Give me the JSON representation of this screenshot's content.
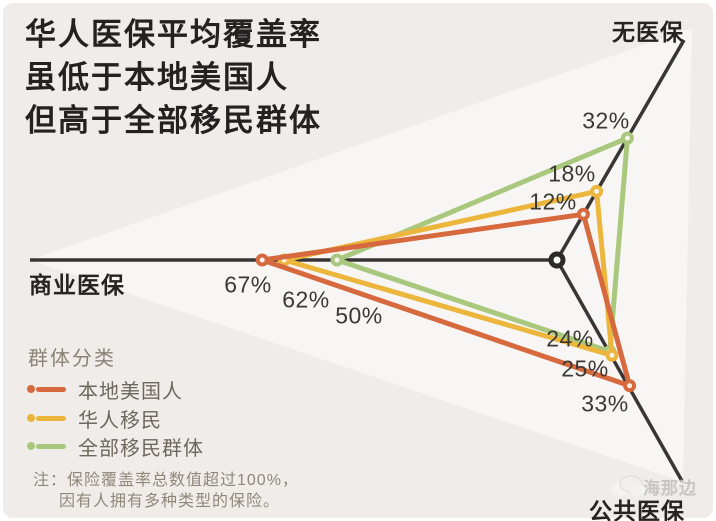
{
  "title": {
    "lines": [
      "华人医保平均覆盖率",
      "虽低于本地美国人",
      "但高于全部移民群体"
    ]
  },
  "chart_data": {
    "type": "radar",
    "unit": "%",
    "axes": [
      {
        "label": "无医保"
      },
      {
        "label": "商业医保"
      },
      {
        "label": "公共医保"
      }
    ],
    "series": [
      {
        "name": "本地美国人",
        "color": "#d7693f",
        "points": [
          {
            "axis": "商业医保",
            "value": 67,
            "display": "67%"
          },
          {
            "axis": "无医保",
            "value": 12,
            "display": "12%"
          },
          {
            "axis": "公共医保",
            "value": 33,
            "display": "33%"
          }
        ]
      },
      {
        "name": "华人移民",
        "color": "#ecb63c",
        "points": [
          {
            "axis": "商业医保",
            "value": 62,
            "display": "62%"
          },
          {
            "axis": "无医保",
            "value": 18,
            "display": "18%"
          },
          {
            "axis": "公共医保",
            "value": 25,
            "display": "25%"
          }
        ]
      },
      {
        "name": "全部移民群体",
        "color": "#a9c87d",
        "points": [
          {
            "axis": "商业医保",
            "value": 50,
            "display": "50%"
          },
          {
            "axis": "无医保",
            "value": 32,
            "display": "32%"
          },
          {
            "axis": "公共医保",
            "value": 24,
            "display": "24%"
          }
        ]
      }
    ],
    "axis_color": "#383634",
    "background": "#efece9",
    "layout_hints": "three spokes from center: left=商业医保, upper-right=无医保, lower-right=公共医保; light fan highlight behind chart"
  },
  "legend": {
    "title": "群体分类",
    "items": [
      "本地美国人",
      "华人移民",
      "全部移民群体"
    ]
  },
  "note": {
    "line1": "注：保险覆盖率总数值超过100%，",
    "line2": "因有人拥有多种类型的保险。"
  },
  "watermark": {
    "text": "海那边"
  }
}
